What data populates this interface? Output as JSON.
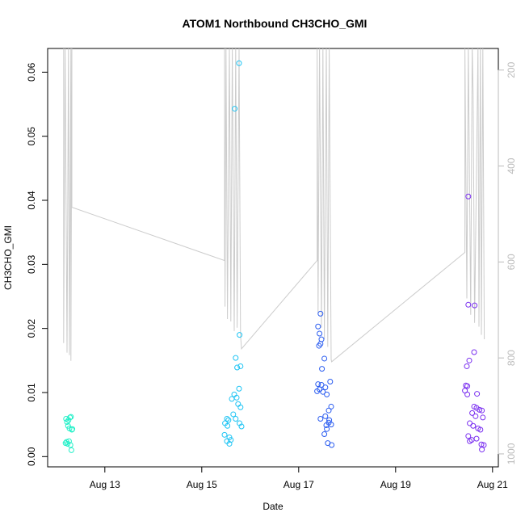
{
  "chart_data": {
    "type": "scatter",
    "title": "ATOM1 Northbound CH3CHO_GMI",
    "xlabel": "Date",
    "ylabel": "CH3CHO_GMI",
    "xlim": [
      11.82,
      21.12
    ],
    "xticks": [
      {
        "value": 13,
        "label": "Aug 13"
      },
      {
        "value": 15,
        "label": "Aug 15"
      },
      {
        "value": 17,
        "label": "Aug 17"
      },
      {
        "value": 19,
        "label": "Aug 19"
      },
      {
        "value": 21,
        "label": "Aug 21"
      }
    ],
    "ylim": [
      -0.0016,
      0.0637
    ],
    "yticks": [
      {
        "value": 0,
        "label": "0.00"
      },
      0.01,
      0.02,
      0.03,
      0.04,
      0.05,
      0.06
    ],
    "y2lim": [
      1027,
      155
    ],
    "y2ticks": [
      200,
      400,
      600,
      800,
      1000
    ],
    "series": [
      {
        "type": "scatter",
        "color": "#22f0c8",
        "x": [
          12.2,
          12.22,
          12.25,
          12.28,
          12.3,
          12.32,
          12.24,
          12.27,
          12.21,
          12.19,
          12.23,
          12.26,
          12.29,
          12.31,
          12.33
        ],
        "values": [
          0.0059,
          0.0054,
          0.0057,
          0.0061,
          0.0062,
          0.0042,
          0.0048,
          0.0044,
          0.0023,
          0.0021,
          0.002,
          0.0024,
          0.0018,
          0.001,
          0.0043
        ]
      },
      {
        "type": "scatter",
        "color": "#1ec4f4",
        "x": [
          15.77,
          15.68,
          15.78,
          15.7,
          15.73,
          15.8,
          15.77,
          15.67,
          15.62,
          15.72,
          15.75,
          15.8,
          15.65,
          15.52,
          15.55,
          15.7,
          15.48,
          15.53,
          15.78,
          15.82,
          15.47,
          15.57,
          15.6,
          15.52,
          15.57
        ],
        "values": [
          0.0614,
          0.0543,
          0.019,
          0.0154,
          0.0139,
          0.0141,
          0.0106,
          0.0097,
          0.009,
          0.0092,
          0.0082,
          0.0077,
          0.0066,
          0.0059,
          0.0057,
          0.0059,
          0.0052,
          0.0048,
          0.0052,
          0.0047,
          0.0034,
          0.003,
          0.0026,
          0.0024,
          0.002
        ]
      },
      {
        "type": "scatter",
        "color": "#2a5cf0",
        "x": [
          17.45,
          17.4,
          17.43,
          17.47,
          17.45,
          17.42,
          17.48,
          17.53,
          17.65,
          17.4,
          17.47,
          17.55,
          17.43,
          17.5,
          17.38,
          17.58,
          17.67,
          17.62,
          17.55,
          17.45,
          17.63,
          17.57,
          17.62,
          17.67,
          17.58,
          17.53,
          17.6,
          17.68
        ],
        "values": [
          0.0223,
          0.0203,
          0.0192,
          0.0183,
          0.0176,
          0.0173,
          0.0137,
          0.0153,
          0.0117,
          0.0113,
          0.0112,
          0.0108,
          0.0105,
          0.0101,
          0.0102,
          0.0097,
          0.0078,
          0.0072,
          0.0063,
          0.0059,
          0.0057,
          0.0049,
          0.0053,
          0.005,
          0.0043,
          0.0035,
          0.0021,
          0.0018
        ]
      },
      {
        "type": "scatter",
        "color": "#7a2ff0",
        "x": [
          20.5,
          20.5,
          20.63,
          20.62,
          20.52,
          20.47,
          20.45,
          20.48,
          20.43,
          20.68,
          20.48,
          20.62,
          20.67,
          20.73,
          20.78,
          20.58,
          20.65,
          20.8,
          20.53,
          20.6,
          20.7,
          20.75,
          20.5,
          20.57,
          20.67,
          20.53,
          20.77,
          20.82,
          20.78
        ],
        "values": [
          0.0406,
          0.0237,
          0.0236,
          0.0163,
          0.015,
          0.0141,
          0.0111,
          0.011,
          0.0103,
          0.0098,
          0.0097,
          0.0078,
          0.0076,
          0.0073,
          0.0072,
          0.0068,
          0.0063,
          0.0061,
          0.0052,
          0.0048,
          0.0044,
          0.0042,
          0.0032,
          0.0026,
          0.0028,
          0.0024,
          0.0019,
          0.0018,
          0.0011
        ]
      },
      {
        "type": "line",
        "axis": "y2",
        "color": "#cccccc",
        "x": [
          12.15,
          12.15,
          12.18,
          12.22,
          12.25,
          12.27,
          12.3,
          12.3,
          12.32,
          12.32,
          15.47,
          15.47,
          15.48,
          15.5,
          15.53,
          15.57,
          15.6,
          15.63,
          15.67,
          15.7,
          15.73,
          15.77,
          15.8,
          15.82,
          17.38,
          17.38,
          17.4,
          17.43,
          17.47,
          17.5,
          17.53,
          17.57,
          17.6,
          17.63,
          17.67,
          17.68,
          20.43,
          20.43,
          20.47,
          20.5,
          20.55,
          20.58,
          20.6,
          20.63,
          20.7,
          20.72,
          20.75,
          20.77,
          20.8,
          20.83
        ],
        "values": [
          150,
          769,
          150,
          789,
          150,
          794,
          150,
          806,
          150,
          486,
          597,
          150,
          693,
          150,
          719,
          150,
          724,
          150,
          744,
          150,
          737,
          150,
          752,
          781,
          597,
          150,
          707,
          150,
          737,
          150,
          761,
          150,
          777,
          150,
          803,
          808,
          580,
          150,
          676,
          150,
          710,
          150,
          252,
          727,
          150,
          735,
          150,
          752,
          150,
          761
        ]
      }
    ]
  }
}
